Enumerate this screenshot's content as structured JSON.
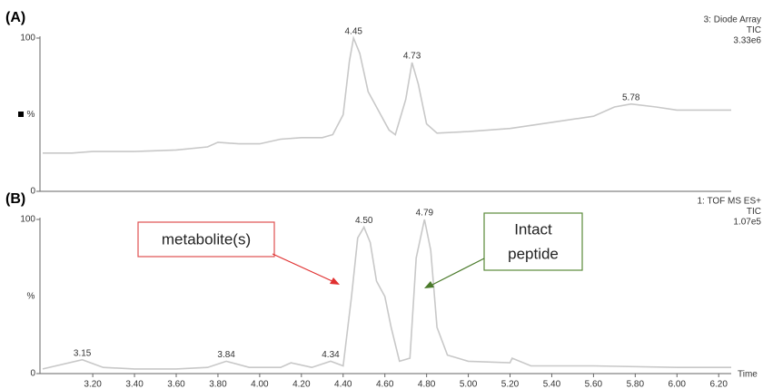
{
  "chart_data": [
    {
      "type": "line",
      "panel": "(A)",
      "info": [
        "3: Diode Array",
        "TIC",
        "3.33e6"
      ],
      "ylabel": "%",
      "xlim": [
        2.96,
        6.26
      ],
      "ylim": [
        0,
        100
      ],
      "yticks": [
        0,
        100
      ],
      "color": "#c8c8c8",
      "x": [
        2.96,
        3.1,
        3.2,
        3.4,
        3.6,
        3.75,
        3.8,
        3.9,
        4.0,
        4.1,
        4.2,
        4.3,
        4.35,
        4.4,
        4.43,
        4.45,
        4.48,
        4.52,
        4.58,
        4.62,
        4.65,
        4.7,
        4.73,
        4.76,
        4.8,
        4.85,
        5.0,
        5.2,
        5.4,
        5.6,
        5.7,
        5.78,
        5.9,
        6.0,
        6.2,
        6.26
      ],
      "values": [
        25,
        25,
        26,
        26,
        27,
        29,
        32,
        31,
        31,
        34,
        35,
        35,
        37,
        50,
        85,
        100,
        90,
        65,
        50,
        40,
        37,
        60,
        84,
        70,
        44,
        38,
        39,
        41,
        45,
        49,
        55,
        57,
        55,
        53,
        53,
        53
      ],
      "annotations": [
        {
          "text": "4.45",
          "x": 4.45,
          "y": 100
        },
        {
          "text": "4.73",
          "x": 4.73,
          "y": 84
        },
        {
          "text": "5.78",
          "x": 5.78,
          "y": 57
        }
      ]
    },
    {
      "type": "line",
      "panel": "(B)",
      "info": [
        "1: TOF MS ES+",
        "TIC",
        "1.07e5"
      ],
      "ylabel": "%",
      "xlabel": "Time",
      "xlim": [
        2.96,
        6.26
      ],
      "ylim": [
        0,
        100
      ],
      "yticks": [
        0,
        100
      ],
      "color": "#c8c8c8",
      "xticks": [
        {
          "value": 3.2,
          "label": "3.20"
        },
        {
          "value": 3.4,
          "label": "3.40"
        },
        {
          "value": 3.6,
          "label": "3.60"
        },
        {
          "value": 3.8,
          "label": "3.80"
        },
        {
          "value": 4.0,
          "label": "4.00"
        },
        {
          "value": 4.2,
          "label": "4.20"
        },
        {
          "value": 4.4,
          "label": "4.40"
        },
        {
          "value": 4.6,
          "label": "4.60"
        },
        {
          "value": 4.8,
          "label": "4.80"
        },
        {
          "value": 5.0,
          "label": "5.00"
        },
        {
          "value": 5.2,
          "label": "5.20"
        },
        {
          "value": 5.4,
          "label": "5.40"
        },
        {
          "value": 5.6,
          "label": "5.60"
        },
        {
          "value": 5.8,
          "label": "5.80"
        },
        {
          "value": 6.0,
          "label": "6.00"
        },
        {
          "value": 6.2,
          "label": "6.20"
        }
      ],
      "x": [
        2.96,
        3.15,
        3.25,
        3.4,
        3.6,
        3.75,
        3.84,
        3.95,
        4.1,
        4.15,
        4.25,
        4.34,
        4.4,
        4.44,
        4.47,
        4.5,
        4.53,
        4.56,
        4.6,
        4.63,
        4.67,
        4.72,
        4.75,
        4.79,
        4.82,
        4.85,
        4.9,
        5.0,
        5.2,
        5.21,
        5.3,
        5.6,
        6.0,
        6.26
      ],
      "values": [
        3,
        9,
        4,
        3,
        3,
        4,
        8,
        4,
        4,
        7,
        4,
        8,
        5,
        50,
        88,
        95,
        85,
        60,
        50,
        30,
        8,
        10,
        75,
        100,
        80,
        30,
        12,
        8,
        7,
        10,
        5,
        5,
        4,
        4
      ],
      "annotations": [
        {
          "text": "3.15",
          "x": 3.15,
          "y": 9
        },
        {
          "text": "3.84",
          "x": 3.84,
          "y": 8
        },
        {
          "text": "4.34",
          "x": 4.34,
          "y": 8
        },
        {
          "text": "4.50",
          "x": 4.5,
          "y": 95
        },
        {
          "text": "4.79",
          "x": 4.79,
          "y": 100
        }
      ],
      "callouts": [
        "metabolite(s)",
        [
          "Intact",
          "peptide"
        ]
      ]
    }
  ]
}
